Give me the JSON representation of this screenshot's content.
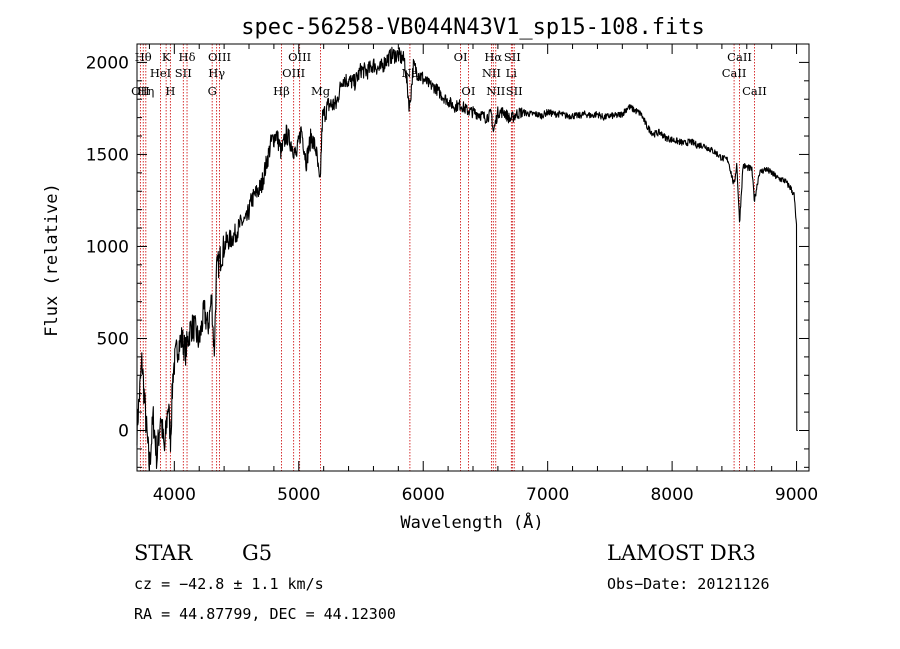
{
  "chart_data": {
    "type": "line",
    "title": "spec-56258-VB044N43V1_sp15-108.fits",
    "xlabel": "Wavelength (Å)",
    "ylabel": "Flux (relative)",
    "xlim": [
      3700,
      9100
    ],
    "ylim": [
      -220,
      2100
    ],
    "xticks": [
      4000,
      5000,
      6000,
      7000,
      8000,
      9000
    ],
    "yticks": [
      0,
      500,
      1000,
      1500,
      2000
    ],
    "grid": false,
    "series_color": "#000000",
    "line_marker_color": "#cc0000",
    "spectrum_anchors": [
      [
        3700,
        10
      ],
      [
        3740,
        380
      ],
      [
        3770,
        60
      ],
      [
        3800,
        -200
      ],
      [
        3830,
        70
      ],
      [
        3860,
        -150
      ],
      [
        3890,
        90
      ],
      [
        3920,
        -120
      ],
      [
        3950,
        150
      ],
      [
        3970,
        -50
      ],
      [
        3990,
        320
      ],
      [
        4020,
        440
      ],
      [
        4060,
        500
      ],
      [
        4090,
        430
      ],
      [
        4130,
        560
      ],
      [
        4160,
        560
      ],
      [
        4200,
        480
      ],
      [
        4240,
        650
      ],
      [
        4270,
        560
      ],
      [
        4300,
        720
      ],
      [
        4320,
        420
      ],
      [
        4340,
        870
      ],
      [
        4380,
        960
      ],
      [
        4420,
        1030
      ],
      [
        4460,
        1040
      ],
      [
        4500,
        1080
      ],
      [
        4540,
        1130
      ],
      [
        4580,
        1140
      ],
      [
        4620,
        1250
      ],
      [
        4660,
        1290
      ],
      [
        4700,
        1330
      ],
      [
        4740,
        1450
      ],
      [
        4780,
        1570
      ],
      [
        4820,
        1610
      ],
      [
        4860,
        1510
      ],
      [
        4900,
        1610
      ],
      [
        4940,
        1560
      ],
      [
        4980,
        1490
      ],
      [
        5020,
        1640
      ],
      [
        5060,
        1460
      ],
      [
        5100,
        1600
      ],
      [
        5140,
        1520
      ],
      [
        5170,
        1320
      ],
      [
        5190,
        1700
      ],
      [
        5240,
        1770
      ],
      [
        5300,
        1770
      ],
      [
        5350,
        1910
      ],
      [
        5400,
        1900
      ],
      [
        5450,
        1890
      ],
      [
        5500,
        1960
      ],
      [
        5550,
        1950
      ],
      [
        5600,
        1990
      ],
      [
        5650,
        1960
      ],
      [
        5700,
        2010
      ],
      [
        5750,
        2040
      ],
      [
        5800,
        2040
      ],
      [
        5850,
        2010
      ],
      [
        5890,
        1750
      ],
      [
        5920,
        1980
      ],
      [
        5960,
        1940
      ],
      [
        6000,
        1910
      ],
      [
        6050,
        1880
      ],
      [
        6100,
        1860
      ],
      [
        6150,
        1820
      ],
      [
        6200,
        1790
      ],
      [
        6250,
        1760
      ],
      [
        6300,
        1770
      ],
      [
        6350,
        1740
      ],
      [
        6400,
        1730
      ],
      [
        6450,
        1720
      ],
      [
        6500,
        1700
      ],
      [
        6550,
        1720
      ],
      [
        6563,
        1620
      ],
      [
        6600,
        1730
      ],
      [
        6650,
        1730
      ],
      [
        6700,
        1690
      ],
      [
        6750,
        1720
      ],
      [
        6800,
        1730
      ],
      [
        6850,
        1720
      ],
      [
        6900,
        1720
      ],
      [
        6950,
        1710
      ],
      [
        7000,
        1730
      ],
      [
        7050,
        1720
      ],
      [
        7100,
        1720
      ],
      [
        7150,
        1710
      ],
      [
        7200,
        1710
      ],
      [
        7250,
        1710
      ],
      [
        7300,
        1720
      ],
      [
        7350,
        1710
      ],
      [
        7400,
        1720
      ],
      [
        7450,
        1700
      ],
      [
        7500,
        1710
      ],
      [
        7550,
        1710
      ],
      [
        7600,
        1720
      ],
      [
        7650,
        1760
      ],
      [
        7700,
        1740
      ],
      [
        7750,
        1720
      ],
      [
        7800,
        1650
      ],
      [
        7850,
        1610
      ],
      [
        7900,
        1620
      ],
      [
        7950,
        1590
      ],
      [
        8000,
        1580
      ],
      [
        8050,
        1570
      ],
      [
        8100,
        1560
      ],
      [
        8150,
        1570
      ],
      [
        8200,
        1550
      ],
      [
        8250,
        1550
      ],
      [
        8300,
        1530
      ],
      [
        8350,
        1510
      ],
      [
        8400,
        1480
      ],
      [
        8450,
        1470
      ],
      [
        8498,
        1330
      ],
      [
        8520,
        1450
      ],
      [
        8542,
        1130
      ],
      [
        8570,
        1440
      ],
      [
        8600,
        1430
      ],
      [
        8640,
        1420
      ],
      [
        8662,
        1250
      ],
      [
        8700,
        1400
      ],
      [
        8750,
        1420
      ],
      [
        8800,
        1400
      ],
      [
        8850,
        1370
      ],
      [
        8900,
        1360
      ],
      [
        8950,
        1320
      ],
      [
        8980,
        1280
      ],
      [
        9000,
        1100
      ],
      [
        9002,
        0
      ]
    ],
    "spectral_lines": [
      {
        "wave": 3727,
        "labels": [
          "OII"
        ],
        "row": 3
      },
      {
        "wave": 3750,
        "labels": [
          "Hθ"
        ],
        "row": 1
      },
      {
        "wave": 3771,
        "labels": [
          "Hη"
        ],
        "row": 3
      },
      {
        "wave": 3889,
        "labels": [
          "HeI"
        ],
        "row": 2
      },
      {
        "wave": 3934,
        "labels": [
          "K"
        ],
        "row": 1
      },
      {
        "wave": 3968,
        "labels": [
          "H"
        ],
        "row": 3
      },
      {
        "wave": 4072,
        "labels": [
          "SII"
        ],
        "row": 2
      },
      {
        "wave": 4102,
        "labels": [
          "Hδ"
        ],
        "row": 1
      },
      {
        "wave": 4304,
        "labels": [
          "G"
        ],
        "row": 3
      },
      {
        "wave": 4340,
        "labels": [
          "Hγ"
        ],
        "row": 2
      },
      {
        "wave": 4363,
        "labels": [
          "OIII"
        ],
        "row": 1
      },
      {
        "wave": 4861,
        "labels": [
          "Hβ"
        ],
        "row": 3
      },
      {
        "wave": 4959,
        "labels": [
          "OIII"
        ],
        "row": 2
      },
      {
        "wave": 5007,
        "labels": [
          "OIII"
        ],
        "row": 1
      },
      {
        "wave": 5175,
        "labels": [
          "Mg"
        ],
        "row": 3
      },
      {
        "wave": 5893,
        "labels": [
          "Na"
        ],
        "row": 2
      },
      {
        "wave": 6300,
        "labels": [
          "OI"
        ],
        "row": 1
      },
      {
        "wave": 6363,
        "labels": [
          "OI"
        ],
        "row": 3
      },
      {
        "wave": 6548,
        "labels": [
          "NII"
        ],
        "row": 2
      },
      {
        "wave": 6563,
        "labels": [
          "Hα"
        ],
        "row": 1
      },
      {
        "wave": 6583,
        "labels": [
          "NII"
        ],
        "row": 3
      },
      {
        "wave": 6708,
        "labels": [
          "Li"
        ],
        "row": 2
      },
      {
        "wave": 6716,
        "labels": [
          "SII"
        ],
        "row": 1
      },
      {
        "wave": 6731,
        "labels": [
          "SII"
        ],
        "row": 3
      },
      {
        "wave": 8498,
        "labels": [
          "CaII"
        ],
        "row": 2
      },
      {
        "wave": 8542,
        "labels": [
          "CaII"
        ],
        "row": 1
      },
      {
        "wave": 8662,
        "labels": [
          "CaII"
        ],
        "row": 3
      }
    ]
  },
  "info": {
    "class": "STAR",
    "subclass": "G5",
    "survey": "LAMOST DR3",
    "cz": "cz = −42.8 ± 1.1 km/s",
    "obs_date": "Obs−Date: 20121126",
    "radec": "RA =  44.87799, DEC =  44.12300"
  }
}
